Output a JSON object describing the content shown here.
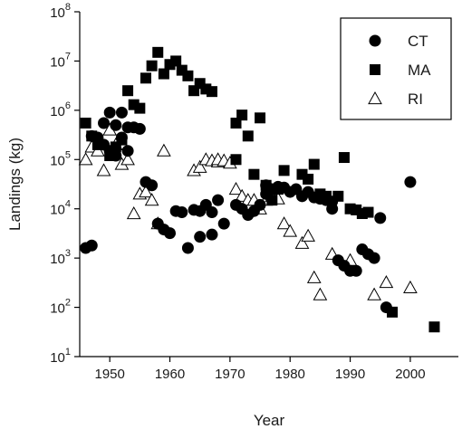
{
  "chart_data": {
    "type": "scatter",
    "title": "",
    "xlabel": "Year",
    "ylabel": "Landings (kg)",
    "xlim": [
      1945,
      2008
    ],
    "ylim_log10": [
      1,
      8
    ],
    "y_scale": "log",
    "grid": false,
    "legend_position": "top-right",
    "x_ticks": [
      1950,
      1960,
      1970,
      1980,
      1990,
      2000
    ],
    "x_tick_labels": [
      "1950",
      "1960",
      "1970",
      "1980",
      "1990",
      "2000"
    ],
    "y_ticks": [
      {
        "base": "10",
        "exp": "1",
        "value": 10
      },
      {
        "base": "10",
        "exp": "2",
        "value": 100
      },
      {
        "base": "10",
        "exp": "3",
        "value": 1000
      },
      {
        "base": "10",
        "exp": "4",
        "value": 10000
      },
      {
        "base": "10",
        "exp": "5",
        "value": 100000
      },
      {
        "base": "10",
        "exp": "6",
        "value": 1000000
      },
      {
        "base": "10",
        "exp": "7",
        "value": 10000000
      },
      {
        "base": "10",
        "exp": "8",
        "value": 100000000
      }
    ],
    "series": [
      {
        "name": "CT",
        "marker": "circle",
        "color": "#000000",
        "points": [
          [
            1946,
            1600
          ],
          [
            1947,
            1800
          ],
          [
            1947,
            300000
          ],
          [
            1948,
            280000
          ],
          [
            1949,
            200000
          ],
          [
            1949,
            550000
          ],
          [
            1950,
            900000
          ],
          [
            1950,
            150000
          ],
          [
            1951,
            500000
          ],
          [
            1951,
            120000
          ],
          [
            1952,
            900000
          ],
          [
            1952,
            280000
          ],
          [
            1953,
            150000
          ],
          [
            1953,
            450000
          ],
          [
            1954,
            450000
          ],
          [
            1955,
            420000
          ],
          [
            1956,
            35000
          ],
          [
            1957,
            30000
          ],
          [
            1958,
            5000
          ],
          [
            1959,
            3800
          ],
          [
            1960,
            3200
          ],
          [
            1961,
            9000
          ],
          [
            1962,
            8500
          ],
          [
            1963,
            1600
          ],
          [
            1964,
            9500
          ],
          [
            1965,
            9000
          ],
          [
            1965,
            2700
          ],
          [
            1966,
            12000
          ],
          [
            1967,
            3000
          ],
          [
            1967,
            8500
          ],
          [
            1968,
            15000
          ],
          [
            1969,
            5000
          ],
          [
            1971,
            12000
          ],
          [
            1972,
            10000
          ],
          [
            1973,
            7500
          ],
          [
            1974,
            9000
          ],
          [
            1975,
            12000
          ],
          [
            1976,
            20000
          ],
          [
            1976,
            30000
          ],
          [
            1977,
            25000
          ],
          [
            1978,
            28000
          ],
          [
            1979,
            27000
          ],
          [
            1980,
            22000
          ],
          [
            1981,
            25000
          ],
          [
            1982,
            18000
          ],
          [
            1983,
            22000
          ],
          [
            1984,
            17000
          ],
          [
            1985,
            16000
          ],
          [
            1986,
            15000
          ],
          [
            1987,
            10000
          ],
          [
            1987,
            14000
          ],
          [
            1988,
            900
          ],
          [
            1989,
            700
          ],
          [
            1990,
            550
          ],
          [
            1991,
            550
          ],
          [
            1992,
            1500
          ],
          [
            1993,
            1200
          ],
          [
            1994,
            1000
          ],
          [
            1995,
            6500
          ],
          [
            1996,
            100
          ],
          [
            2000,
            35000
          ]
        ]
      },
      {
        "name": "MA",
        "marker": "square",
        "color": "#000000",
        "points": [
          [
            1946,
            550000
          ],
          [
            1947,
            300000
          ],
          [
            1948,
            200000
          ],
          [
            1950,
            120000
          ],
          [
            1951,
            180000
          ],
          [
            1952,
            250000
          ],
          [
            1953,
            2500000
          ],
          [
            1954,
            1300000
          ],
          [
            1955,
            1100000
          ],
          [
            1956,
            4500000
          ],
          [
            1957,
            8000000
          ],
          [
            1958,
            15000000
          ],
          [
            1959,
            5500000
          ],
          [
            1960,
            8500000
          ],
          [
            1961,
            10000000
          ],
          [
            1962,
            6500000
          ],
          [
            1963,
            5000000
          ],
          [
            1964,
            2500000
          ],
          [
            1965,
            3500000
          ],
          [
            1966,
            2700000
          ],
          [
            1967,
            2400000
          ],
          [
            1971,
            550000
          ],
          [
            1971,
            100000
          ],
          [
            1972,
            800000
          ],
          [
            1973,
            300000
          ],
          [
            1974,
            50000
          ],
          [
            1975,
            700000
          ],
          [
            1976,
            30000
          ],
          [
            1977,
            15000
          ],
          [
            1978,
            25000
          ],
          [
            1979,
            60000
          ],
          [
            1982,
            50000
          ],
          [
            1983,
            40000
          ],
          [
            1984,
            80000
          ],
          [
            1985,
            20000
          ],
          [
            1986,
            18000
          ],
          [
            1988,
            18000
          ],
          [
            1989,
            110000
          ],
          [
            1990,
            10000
          ],
          [
            1991,
            9500
          ],
          [
            1992,
            8000
          ],
          [
            1993,
            8500
          ],
          [
            1997,
            80
          ],
          [
            2004,
            40
          ]
        ]
      },
      {
        "name": "RI",
        "marker": "triangle-open",
        "color": "#000000",
        "points": [
          [
            1946,
            100000
          ],
          [
            1947,
            180000
          ],
          [
            1948,
            150000
          ],
          [
            1949,
            60000
          ],
          [
            1950,
            400000
          ],
          [
            1951,
            200000
          ],
          [
            1952,
            80000
          ],
          [
            1953,
            100000
          ],
          [
            1954,
            8000
          ],
          [
            1955,
            20000
          ],
          [
            1956,
            22000
          ],
          [
            1957,
            15000
          ],
          [
            1958,
            5000
          ],
          [
            1959,
            150000
          ],
          [
            1964,
            60000
          ],
          [
            1965,
            70000
          ],
          [
            1966,
            100000
          ],
          [
            1967,
            95000
          ],
          [
            1968,
            90000
          ],
          [
            1968,
            100000
          ],
          [
            1969,
            95000
          ],
          [
            1970,
            85000
          ],
          [
            1971,
            25000
          ],
          [
            1972,
            18000
          ],
          [
            1973,
            15000
          ],
          [
            1974,
            15000
          ],
          [
            1975,
            10000
          ],
          [
            1976,
            15000
          ],
          [
            1977,
            18000
          ],
          [
            1978,
            16000
          ],
          [
            1979,
            5000
          ],
          [
            1980,
            3500
          ],
          [
            1982,
            2000
          ],
          [
            1983,
            2800
          ],
          [
            1984,
            400
          ],
          [
            1985,
            180
          ],
          [
            1987,
            1200
          ],
          [
            1990,
            900
          ],
          [
            1994,
            180
          ],
          [
            1996,
            320
          ],
          [
            2000,
            250
          ]
        ]
      }
    ]
  }
}
